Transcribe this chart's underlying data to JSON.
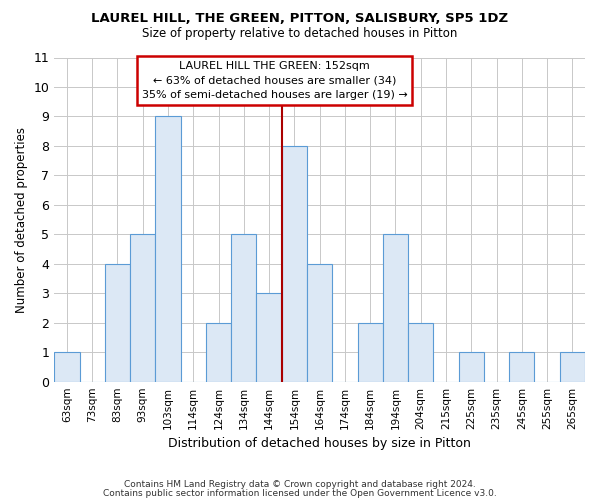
{
  "title": "LAUREL HILL, THE GREEN, PITTON, SALISBURY, SP5 1DZ",
  "subtitle": "Size of property relative to detached houses in Pitton",
  "xlabel": "Distribution of detached houses by size in Pitton",
  "ylabel": "Number of detached properties",
  "bin_labels": [
    "63sqm",
    "73sqm",
    "83sqm",
    "93sqm",
    "103sqm",
    "114sqm",
    "124sqm",
    "134sqm",
    "144sqm",
    "154sqm",
    "164sqm",
    "174sqm",
    "184sqm",
    "194sqm",
    "204sqm",
    "215sqm",
    "225sqm",
    "235sqm",
    "245sqm",
    "255sqm",
    "265sqm"
  ],
  "bar_heights": [
    1,
    0,
    4,
    5,
    9,
    0,
    2,
    5,
    3,
    8,
    4,
    0,
    2,
    5,
    2,
    0,
    1,
    0,
    1,
    0,
    1
  ],
  "bar_color": "#dce8f5",
  "bar_edge_color": "#5b9bd5",
  "marker_line_color": "#aa0000",
  "annotation_text_line1": "LAUREL HILL THE GREEN: 152sqm",
  "annotation_text_line2": "← 63% of detached houses are smaller (34)",
  "annotation_text_line3": "35% of semi-detached houses are larger (19) →",
  "annotation_box_color": "#ffffff",
  "annotation_box_edge": "#cc0000",
  "ylim": [
    0,
    11
  ],
  "yticks": [
    0,
    1,
    2,
    3,
    4,
    5,
    6,
    7,
    8,
    9,
    10,
    11
  ],
  "footer_line1": "Contains HM Land Registry data © Crown copyright and database right 2024.",
  "footer_line2": "Contains public sector information licensed under the Open Government Licence v3.0.",
  "background_color": "#ffffff",
  "grid_color": "#c8c8c8"
}
